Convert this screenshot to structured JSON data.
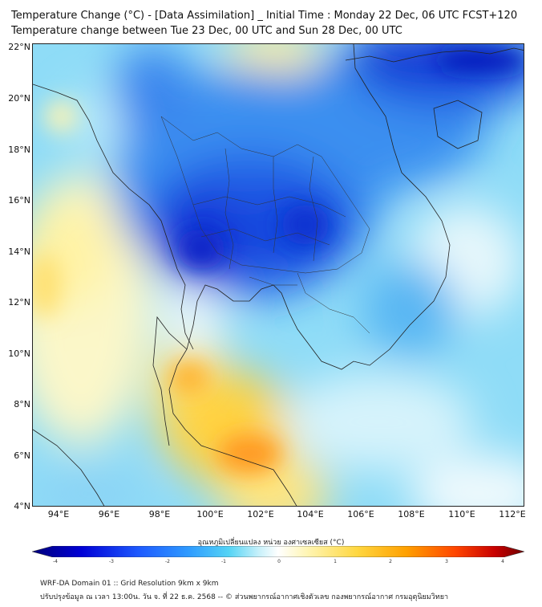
{
  "title": {
    "line1": "Temperature Change (°C) - [Data Assimilation] _ Initial Time : Monday 22 Dec, 06 UTC FCST+120",
    "line2": "Temperature change between Tue 23 Dec, 00 UTC and Sun 28 Dec, 00 UTC"
  },
  "map": {
    "lat_labels": [
      "22°N",
      "20°N",
      "18°N",
      "16°N",
      "14°N",
      "12°N",
      "10°N",
      "8°N",
      "6°N",
      "4°N"
    ],
    "lon_labels": [
      "94°E",
      "96°E",
      "98°E",
      "100°E",
      "102°E",
      "104°E",
      "106°E",
      "108°E",
      "110°E",
      "112°E"
    ],
    "lat_range": [
      4,
      22
    ],
    "lon_range": [
      93,
      112.5
    ]
  },
  "colorbar": {
    "label": "อุณหภูมิเปลี่ยนแปลง หน่วย องศาเซลเซียส (°C)",
    "ticks": [
      "-4",
      "-3",
      "-2",
      "-1",
      "0",
      "1",
      "2",
      "3",
      "4"
    ],
    "range": [
      -4,
      4
    ],
    "colors": [
      "#00007a",
      "#0000d6",
      "#1e5cff",
      "#2f9cff",
      "#55d4f5",
      "#c6f0fa",
      "#ffffff",
      "#fff5b3",
      "#ffd740",
      "#ffa000",
      "#ff4500",
      "#c80000",
      "#6e0000"
    ]
  },
  "footer": {
    "line1": "WRF-DA Domain 01 :: Grid Resolution 9km x 9km",
    "line2": "ปรับปรุงข้อมูล ณ เวลา 13:00น. วัน จ. ที่ 22 ธ.ค. 2568 -- © ส่วนพยากรณ์อากาศเชิงตัวเลข กองพยากรณ์อากาศ กรมอุตุนิยมวิทยา"
  }
}
